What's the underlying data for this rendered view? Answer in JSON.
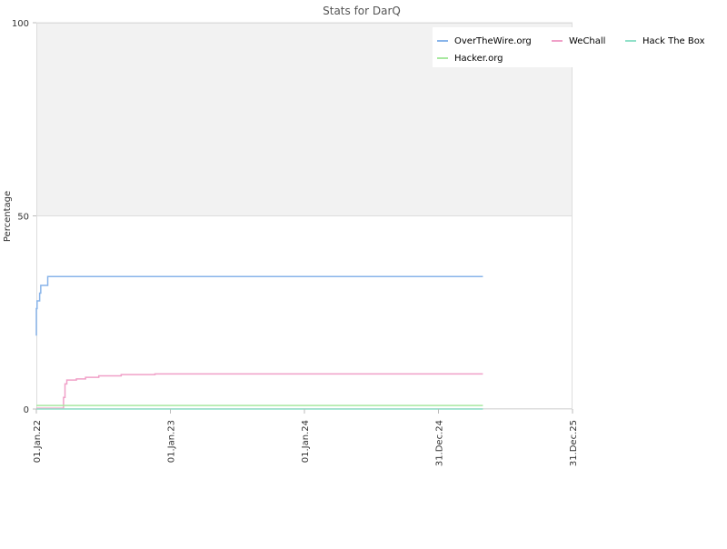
{
  "chart_data": {
    "type": "line",
    "title": "Stats for DarQ",
    "xlabel": "",
    "ylabel": "Percentage",
    "x_tick_labels": [
      "01.Jan.22",
      "01.Jan.23",
      "01.Jan.24",
      "31.Dec.24",
      "31.Dec.25"
    ],
    "x_range": [
      "2022-01-01",
      "2025-12-31"
    ],
    "y_tick_labels": [
      "0",
      "50",
      "100"
    ],
    "ylim": [
      0,
      100
    ],
    "grid": true,
    "legend_position": "top-right",
    "series": [
      {
        "name": "OverTheWire.org",
        "color": "#88b4ea",
        "points": [
          [
            "2022-01-01",
            19
          ],
          [
            "2022-01-01",
            26
          ],
          [
            "2022-01-03",
            28
          ],
          [
            "2022-01-10",
            30
          ],
          [
            "2022-01-13",
            32
          ],
          [
            "2022-02-01",
            34.3
          ],
          [
            "2025-05-01",
            34.3
          ]
        ]
      },
      {
        "name": "WeChall",
        "color": "#f0a0c8",
        "points": [
          [
            "2022-01-01",
            0.2
          ],
          [
            "2022-03-15",
            0.2
          ],
          [
            "2022-03-16",
            3
          ],
          [
            "2022-03-20",
            6.5
          ],
          [
            "2022-03-25",
            7.5
          ],
          [
            "2022-04-20",
            7.8
          ],
          [
            "2022-05-15",
            8.2
          ],
          [
            "2022-06-20",
            8.6
          ],
          [
            "2022-08-20",
            8.9
          ],
          [
            "2022-11-20",
            9.1
          ],
          [
            "2025-05-01",
            9.1
          ]
        ]
      },
      {
        "name": "Hack The Box",
        "color": "#90e0c8",
        "points": [
          [
            "2022-01-01",
            0
          ],
          [
            "2025-05-01",
            0
          ]
        ]
      },
      {
        "name": "Hacker.org",
        "color": "#a8e8a0",
        "points": [
          [
            "2022-01-01",
            0.9
          ],
          [
            "2025-05-01",
            0.9
          ]
        ]
      }
    ]
  }
}
